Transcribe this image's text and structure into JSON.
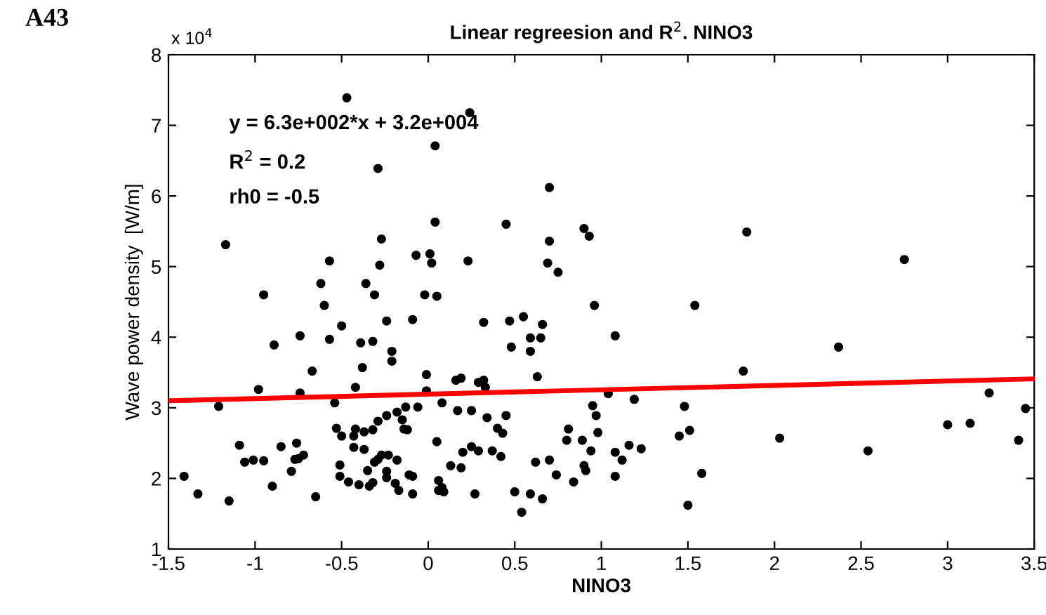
{
  "chart_data": {
    "type": "scatter",
    "title": "Linear regreesion and R$^{2}$. NINO3",
    "xlabel": "NINO3",
    "ylabel": "Wave power density  [W/m]",
    "annotations": [
      "A43",
      "x 10$^{4}$",
      "y = 6.3e+002*x + 3.2e+004",
      "R$^{2}$ = 0.2",
      "rh0 = -0.5"
    ],
    "xlim": [
      -1.5,
      3.5
    ],
    "xticks": [
      -1.5,
      -1,
      -0.5,
      0,
      0.5,
      1,
      1.5,
      2,
      2.5,
      3,
      3.5
    ],
    "ylim": [
      1,
      8
    ],
    "yticks": [
      1,
      2,
      3,
      4,
      5,
      6,
      7,
      8
    ],
    "grid": false,
    "legend": false,
    "marker": "circle",
    "series": [
      {
        "color": "#000000",
        "x": [
          -0.47,
          0.24,
          0.04,
          -0.29,
          0.7,
          0.04,
          0.45,
          -1.17,
          -0.27,
          0.7,
          0.9,
          0.93,
          -0.57,
          -0.07,
          0.01,
          0.02,
          -0.28,
          0.23,
          0.69,
          0.75,
          -0.62,
          -0.36,
          -0.95,
          -0.31,
          -0.02,
          0.05,
          -0.6,
          0.96,
          -0.24,
          -0.09,
          -0.5,
          0.32,
          0.47,
          0.55,
          0.66,
          1.08,
          -0.89,
          -0.74,
          -0.57,
          -0.39,
          -0.32,
          -0.21,
          -0.21,
          -0.38,
          -0.67,
          0.48,
          0.59,
          0.59,
          0.65,
          0.63,
          -0.01,
          0.16,
          0.19,
          0.29,
          0.32,
          0.33,
          -0.01,
          -0.42,
          -0.98,
          -0.74,
          -1.21,
          -0.54,
          0.08,
          -0.13,
          -0.06,
          0.17,
          0.25,
          0.45,
          0.34,
          -0.29,
          -0.24,
          -0.18,
          -0.15,
          -0.14,
          -0.12,
          -0.53,
          -0.5,
          -0.42,
          -0.43,
          -0.37,
          -0.32,
          0.4,
          0.43,
          0.95,
          0.97,
          0.98,
          1.04,
          0.81,
          0.8,
          0.89,
          0.05,
          -1.09,
          -0.85,
          -0.76,
          -0.72,
          -0.75,
          -0.77,
          -1.06,
          -1.01,
          -0.95,
          -0.43,
          -0.37,
          -0.29,
          -0.27,
          -0.23,
          -0.18,
          -0.31,
          0.2,
          0.25,
          0.29,
          0.37,
          0.42,
          0.62,
          0.7,
          0.13,
          0.19,
          0.94,
          0.9,
          0.91,
          1.08,
          1.08,
          -0.51,
          -0.51,
          -0.79,
          -0.35,
          -0.32,
          -0.24,
          -0.24,
          -0.11,
          -0.09,
          0.74,
          0.84,
          -1.41,
          -0.46,
          -0.4,
          -0.34,
          -0.19,
          -0.17,
          0.06,
          0.08,
          0.06,
          0.09,
          -0.09,
          0.27,
          0.5,
          0.59,
          0.66,
          0.54,
          -1.33,
          -1.15,
          -0.9,
          -0.65,
          1.19,
          1.48,
          1.82,
          2.37,
          3.24,
          3.45,
          3.0,
          3.13,
          3.41,
          1.45,
          1.51,
          2.03,
          2.54,
          1.12,
          1.16,
          1.23,
          1.58,
          1.5,
          1.84,
          1.54,
          2.75
        ],
        "values": [
          7.39,
          7.18,
          6.71,
          6.39,
          6.12,
          5.63,
          5.6,
          5.31,
          5.39,
          5.36,
          5.54,
          5.43,
          5.08,
          5.16,
          5.18,
          5.05,
          5.02,
          5.08,
          5.05,
          4.92,
          4.76,
          4.76,
          4.6,
          4.6,
          4.6,
          4.58,
          4.45,
          4.45,
          4.23,
          4.25,
          4.16,
          4.21,
          4.23,
          4.29,
          4.18,
          4.02,
          3.89,
          4.02,
          3.97,
          3.92,
          3.94,
          3.8,
          3.66,
          3.57,
          3.52,
          3.86,
          3.99,
          3.8,
          3.99,
          3.44,
          3.47,
          3.39,
          3.42,
          3.36,
          3.39,
          3.29,
          3.24,
          3.29,
          3.26,
          3.21,
          3.02,
          3.07,
          3.07,
          3.01,
          3.01,
          2.96,
          2.96,
          2.89,
          2.86,
          2.81,
          2.89,
          2.94,
          2.83,
          2.7,
          2.69,
          2.71,
          2.6,
          2.7,
          2.6,
          2.66,
          2.69,
          2.71,
          2.64,
          3.03,
          2.89,
          2.65,
          3.2,
          2.7,
          2.54,
          2.54,
          2.52,
          2.47,
          2.45,
          2.5,
          2.33,
          2.28,
          2.27,
          2.23,
          2.26,
          2.25,
          2.44,
          2.41,
          2.27,
          2.33,
          2.33,
          2.26,
          2.23,
          2.37,
          2.45,
          2.39,
          2.39,
          2.31,
          2.23,
          2.26,
          2.18,
          2.15,
          2.39,
          2.18,
          2.11,
          2.37,
          2.03,
          2.19,
          2.03,
          2.1,
          2.11,
          1.94,
          2.1,
          2.01,
          2.05,
          2.03,
          2.05,
          1.95,
          2.03,
          1.95,
          1.91,
          1.89,
          1.93,
          1.83,
          1.97,
          1.87,
          1.83,
          1.81,
          1.78,
          1.78,
          1.81,
          1.78,
          1.71,
          1.52,
          1.78,
          1.68,
          1.89,
          1.74,
          3.12,
          3.02,
          3.52,
          3.86,
          3.21,
          2.99,
          2.76,
          2.78,
          2.54,
          2.6,
          2.68,
          2.57,
          2.39,
          2.26,
          2.47,
          2.42,
          2.07,
          1.62,
          5.49,
          4.45,
          5.1
        ]
      },
      {
        "type": "line",
        "color": "#ff0000",
        "marker": "none",
        "x": [
          -1.5,
          3.5
        ],
        "values": [
          3.1,
          3.41
        ]
      }
    ]
  }
}
